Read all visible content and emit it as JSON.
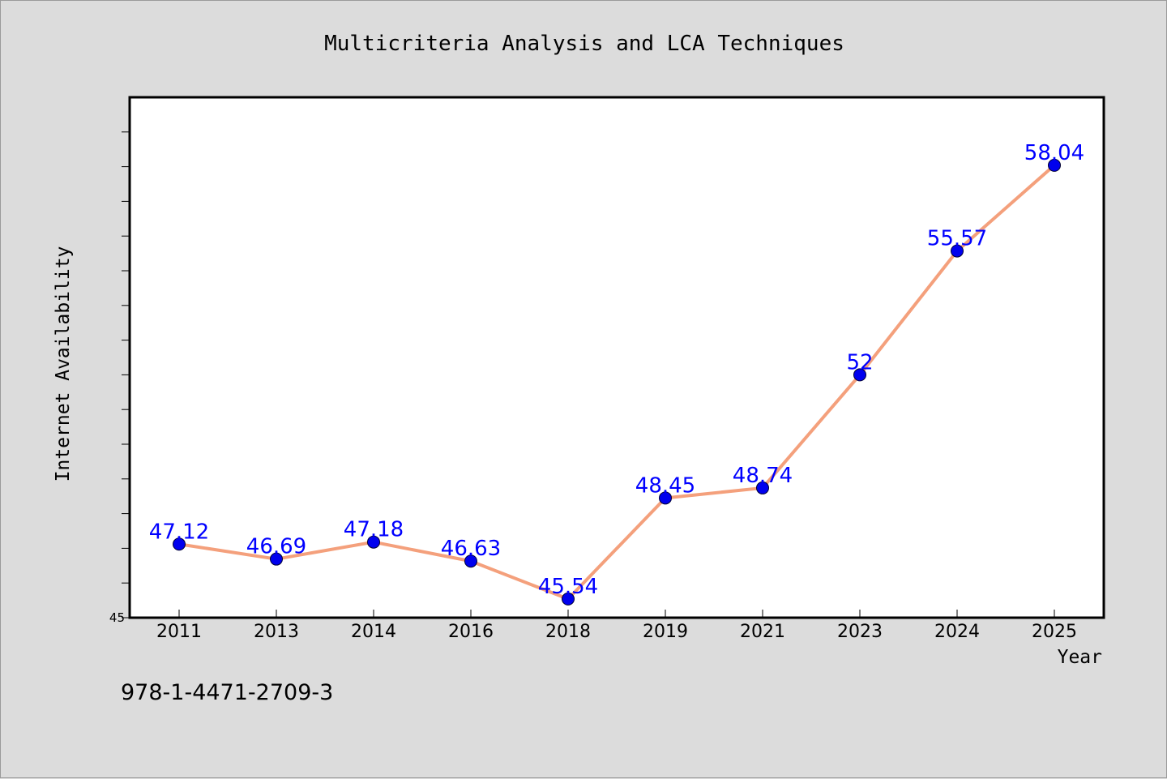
{
  "footer_text": "978-1-4471-2709-3",
  "colors": {
    "background": "#dcdcdc",
    "plot_background": "#ffffff",
    "line": "#f4a07c",
    "marker": "#0000ee",
    "data_label": "#0000ff"
  },
  "chart_data": {
    "type": "line",
    "title": "Multicriteria Analysis and LCA Techniques",
    "xlabel": "Year",
    "ylabel": "Internet Availability",
    "categories": [
      "2011",
      "2013",
      "2014",
      "2016",
      "2018",
      "2019",
      "2021",
      "2023",
      "2024",
      "2025"
    ],
    "series": [
      {
        "values": [
          47.12,
          46.69,
          47.18,
          46.63,
          45.54,
          48.45,
          48.74,
          52,
          55.57,
          58.04
        ],
        "labels": [
          "47.12",
          "46.69",
          "47.18",
          "46.63",
          "45.54",
          "48.45",
          "48.74",
          "52",
          "55.57",
          "58.04"
        ]
      }
    ],
    "ylim": [
      45,
      60
    ],
    "ytick_step": 1,
    "ytick_labels": [
      "45"
    ],
    "grid": false,
    "legend": false
  }
}
